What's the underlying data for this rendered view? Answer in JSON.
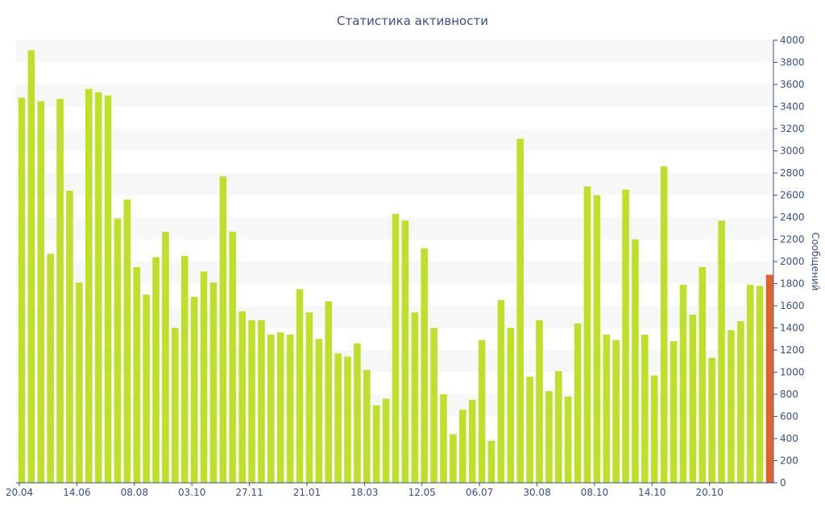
{
  "chart_data": {
    "type": "bar",
    "title": "Статистика активности",
    "ylabel": "Сообщений",
    "xlabel": "",
    "ylim": [
      0,
      4000
    ],
    "y_ticks": [
      0,
      200,
      400,
      600,
      800,
      1000,
      1200,
      1400,
      1600,
      1800,
      2000,
      2200,
      2400,
      2600,
      2800,
      3000,
      3200,
      3400,
      3600,
      3800,
      4000
    ],
    "y_axis_position": "right",
    "grid": "alternating horizontal bands",
    "x_tick_labels": [
      "20.04",
      "14.06",
      "08.08",
      "03.10",
      "27.11",
      "21.01",
      "18.03",
      "12.05",
      "06.07",
      "30.08",
      "08.10",
      "14.10",
      "20.10"
    ],
    "colors": {
      "bar": "#bde02b",
      "highlight": "#e2622e",
      "text": "#3a4f86",
      "band": "#f7f7f7"
    },
    "values": [
      3480,
      3910,
      3450,
      2070,
      3470,
      2640,
      1810,
      3560,
      3530,
      3500,
      2390,
      2560,
      1950,
      1700,
      2040,
      2270,
      1400,
      2050,
      1680,
      1910,
      1810,
      2770,
      2270,
      1550,
      1470,
      1470,
      1340,
      1360,
      1340,
      1750,
      1540,
      1300,
      1640,
      1170,
      1140,
      1260,
      1020,
      700,
      760,
      2430,
      2370,
      1540,
      2120,
      1400,
      800,
      440,
      660,
      750,
      1290,
      380,
      1650,
      1400,
      3110,
      960,
      1470,
      830,
      1010,
      780,
      1440,
      2680,
      2600,
      1340,
      1290,
      2650,
      2200,
      1340,
      970,
      2860,
      1280,
      1790,
      1520,
      1950,
      1130,
      2370,
      1380,
      1460,
      1790,
      1780
    ],
    "highlighted_last_value": 1880
  }
}
